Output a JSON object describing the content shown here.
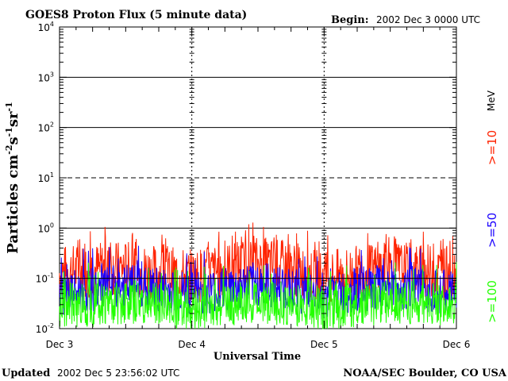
{
  "header": {
    "title": "GOES8 Proton Flux (5 minute data)",
    "begin_label": "Begin:",
    "begin_value": "2002 Dec 3 0000 UTC"
  },
  "footer": {
    "updated_label": "Updated",
    "updated_value": "2002 Dec  5 23:56:02 UTC",
    "credit": "NOAA/SEC Boulder, CO USA"
  },
  "colors": {
    "ge10": "#ff2200",
    "ge50": "#1a00ff",
    "ge100": "#22ff00",
    "threshold": "#000000",
    "grid": "#000000",
    "background": "#ffffff"
  },
  "chart_data": {
    "type": "line",
    "title": "GOES8 Proton Flux (5 minute data)",
    "xlabel": "Universal Time",
    "ylabel_parts": [
      "Particles cm",
      "-2",
      "s",
      "-1",
      "sr",
      "-1"
    ],
    "yscale": "log",
    "ylim": [
      0.01,
      10000
    ],
    "xlim": [
      0,
      3
    ],
    "x_unit": "days since 2002 Dec 3 0000 UTC",
    "x_ticks": [
      {
        "value": 0,
        "label": "Dec 3"
      },
      {
        "value": 1,
        "label": "Dec 4"
      },
      {
        "value": 2,
        "label": "Dec 5"
      },
      {
        "value": 3,
        "label": "Dec 6"
      }
    ],
    "y_ticks": [
      {
        "value": 0.01,
        "base": "10",
        "exp": "-2"
      },
      {
        "value": 0.1,
        "base": "10",
        "exp": "-1"
      },
      {
        "value": 1,
        "base": "10",
        "exp": "0"
      },
      {
        "value": 10,
        "base": "10",
        "exp": "1"
      },
      {
        "value": 100,
        "base": "10",
        "exp": "2"
      },
      {
        "value": 1000,
        "base": "10",
        "exp": "3"
      },
      {
        "value": 10000,
        "base": "10",
        "exp": "4"
      }
    ],
    "threshold": {
      "value": 10,
      "style": "dashed"
    },
    "threshold_10_of_ge10": {
      "value": 0.1,
      "color": "#000000"
    },
    "legend_unit": "MeV",
    "series": [
      {
        "name": ">=10",
        "color": "#ff2200",
        "x": [
          0.0,
          0.25,
          0.5,
          0.75,
          1.0,
          1.25,
          1.5,
          1.75,
          2.0,
          2.25,
          2.5,
          2.75,
          3.0
        ],
        "values": [
          0.13,
          0.15,
          0.16,
          0.13,
          0.11,
          0.15,
          0.2,
          0.16,
          0.1,
          0.13,
          0.16,
          0.14,
          0.12
        ]
      },
      {
        "name": ">=50",
        "color": "#1a00ff",
        "x": [
          0.0,
          0.25,
          0.5,
          0.75,
          1.0,
          1.25,
          1.5,
          1.75,
          2.0,
          2.25,
          2.5,
          2.75,
          3.0
        ],
        "values": [
          0.05,
          0.06,
          0.07,
          0.06,
          0.05,
          0.06,
          0.08,
          0.06,
          0.04,
          0.06,
          0.07,
          0.06,
          0.05
        ]
      },
      {
        "name": ">=100",
        "color": "#22ff00",
        "x": [
          0.0,
          0.25,
          0.5,
          0.75,
          1.0,
          1.25,
          1.5,
          1.75,
          2.0,
          2.25,
          2.5,
          2.75,
          3.0
        ],
        "values": [
          0.03,
          0.03,
          0.035,
          0.03,
          0.025,
          0.03,
          0.035,
          0.03,
          0.025,
          0.03,
          0.035,
          0.03,
          0.03
        ]
      }
    ]
  }
}
